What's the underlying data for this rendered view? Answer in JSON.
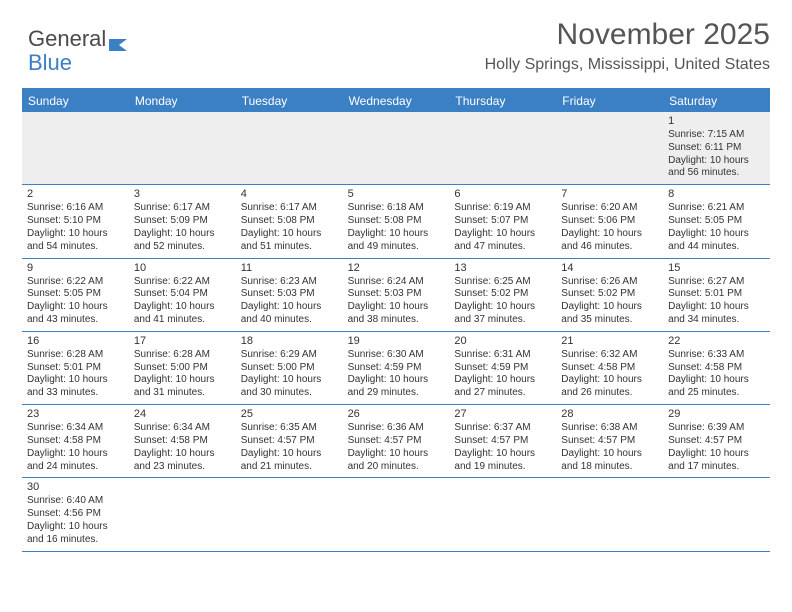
{
  "logo": {
    "part1": "General",
    "part2": "Blue"
  },
  "header": {
    "month_title": "November 2025",
    "location": "Holly Springs, Mississippi, United States"
  },
  "colors": {
    "header_bar": "#3b7fc4",
    "rule": "#3b7fc4",
    "first_week_bg": "#eeeeee",
    "text": "#333333",
    "title_text": "#555555"
  },
  "weekdays": [
    "Sunday",
    "Monday",
    "Tuesday",
    "Wednesday",
    "Thursday",
    "Friday",
    "Saturday"
  ],
  "weeks": [
    [
      null,
      null,
      null,
      null,
      null,
      null,
      {
        "n": "1",
        "sunrise": "Sunrise: 7:15 AM",
        "sunset": "Sunset: 6:11 PM",
        "d1": "Daylight: 10 hours",
        "d2": "and 56 minutes."
      }
    ],
    [
      {
        "n": "2",
        "sunrise": "Sunrise: 6:16 AM",
        "sunset": "Sunset: 5:10 PM",
        "d1": "Daylight: 10 hours",
        "d2": "and 54 minutes."
      },
      {
        "n": "3",
        "sunrise": "Sunrise: 6:17 AM",
        "sunset": "Sunset: 5:09 PM",
        "d1": "Daylight: 10 hours",
        "d2": "and 52 minutes."
      },
      {
        "n": "4",
        "sunrise": "Sunrise: 6:17 AM",
        "sunset": "Sunset: 5:08 PM",
        "d1": "Daylight: 10 hours",
        "d2": "and 51 minutes."
      },
      {
        "n": "5",
        "sunrise": "Sunrise: 6:18 AM",
        "sunset": "Sunset: 5:08 PM",
        "d1": "Daylight: 10 hours",
        "d2": "and 49 minutes."
      },
      {
        "n": "6",
        "sunrise": "Sunrise: 6:19 AM",
        "sunset": "Sunset: 5:07 PM",
        "d1": "Daylight: 10 hours",
        "d2": "and 47 minutes."
      },
      {
        "n": "7",
        "sunrise": "Sunrise: 6:20 AM",
        "sunset": "Sunset: 5:06 PM",
        "d1": "Daylight: 10 hours",
        "d2": "and 46 minutes."
      },
      {
        "n": "8",
        "sunrise": "Sunrise: 6:21 AM",
        "sunset": "Sunset: 5:05 PM",
        "d1": "Daylight: 10 hours",
        "d2": "and 44 minutes."
      }
    ],
    [
      {
        "n": "9",
        "sunrise": "Sunrise: 6:22 AM",
        "sunset": "Sunset: 5:05 PM",
        "d1": "Daylight: 10 hours",
        "d2": "and 43 minutes."
      },
      {
        "n": "10",
        "sunrise": "Sunrise: 6:22 AM",
        "sunset": "Sunset: 5:04 PM",
        "d1": "Daylight: 10 hours",
        "d2": "and 41 minutes."
      },
      {
        "n": "11",
        "sunrise": "Sunrise: 6:23 AM",
        "sunset": "Sunset: 5:03 PM",
        "d1": "Daylight: 10 hours",
        "d2": "and 40 minutes."
      },
      {
        "n": "12",
        "sunrise": "Sunrise: 6:24 AM",
        "sunset": "Sunset: 5:03 PM",
        "d1": "Daylight: 10 hours",
        "d2": "and 38 minutes."
      },
      {
        "n": "13",
        "sunrise": "Sunrise: 6:25 AM",
        "sunset": "Sunset: 5:02 PM",
        "d1": "Daylight: 10 hours",
        "d2": "and 37 minutes."
      },
      {
        "n": "14",
        "sunrise": "Sunrise: 6:26 AM",
        "sunset": "Sunset: 5:02 PM",
        "d1": "Daylight: 10 hours",
        "d2": "and 35 minutes."
      },
      {
        "n": "15",
        "sunrise": "Sunrise: 6:27 AM",
        "sunset": "Sunset: 5:01 PM",
        "d1": "Daylight: 10 hours",
        "d2": "and 34 minutes."
      }
    ],
    [
      {
        "n": "16",
        "sunrise": "Sunrise: 6:28 AM",
        "sunset": "Sunset: 5:01 PM",
        "d1": "Daylight: 10 hours",
        "d2": "and 33 minutes."
      },
      {
        "n": "17",
        "sunrise": "Sunrise: 6:28 AM",
        "sunset": "Sunset: 5:00 PM",
        "d1": "Daylight: 10 hours",
        "d2": "and 31 minutes."
      },
      {
        "n": "18",
        "sunrise": "Sunrise: 6:29 AM",
        "sunset": "Sunset: 5:00 PM",
        "d1": "Daylight: 10 hours",
        "d2": "and 30 minutes."
      },
      {
        "n": "19",
        "sunrise": "Sunrise: 6:30 AM",
        "sunset": "Sunset: 4:59 PM",
        "d1": "Daylight: 10 hours",
        "d2": "and 29 minutes."
      },
      {
        "n": "20",
        "sunrise": "Sunrise: 6:31 AM",
        "sunset": "Sunset: 4:59 PM",
        "d1": "Daylight: 10 hours",
        "d2": "and 27 minutes."
      },
      {
        "n": "21",
        "sunrise": "Sunrise: 6:32 AM",
        "sunset": "Sunset: 4:58 PM",
        "d1": "Daylight: 10 hours",
        "d2": "and 26 minutes."
      },
      {
        "n": "22",
        "sunrise": "Sunrise: 6:33 AM",
        "sunset": "Sunset: 4:58 PM",
        "d1": "Daylight: 10 hours",
        "d2": "and 25 minutes."
      }
    ],
    [
      {
        "n": "23",
        "sunrise": "Sunrise: 6:34 AM",
        "sunset": "Sunset: 4:58 PM",
        "d1": "Daylight: 10 hours",
        "d2": "and 24 minutes."
      },
      {
        "n": "24",
        "sunrise": "Sunrise: 6:34 AM",
        "sunset": "Sunset: 4:58 PM",
        "d1": "Daylight: 10 hours",
        "d2": "and 23 minutes."
      },
      {
        "n": "25",
        "sunrise": "Sunrise: 6:35 AM",
        "sunset": "Sunset: 4:57 PM",
        "d1": "Daylight: 10 hours",
        "d2": "and 21 minutes."
      },
      {
        "n": "26",
        "sunrise": "Sunrise: 6:36 AM",
        "sunset": "Sunset: 4:57 PM",
        "d1": "Daylight: 10 hours",
        "d2": "and 20 minutes."
      },
      {
        "n": "27",
        "sunrise": "Sunrise: 6:37 AM",
        "sunset": "Sunset: 4:57 PM",
        "d1": "Daylight: 10 hours",
        "d2": "and 19 minutes."
      },
      {
        "n": "28",
        "sunrise": "Sunrise: 6:38 AM",
        "sunset": "Sunset: 4:57 PM",
        "d1": "Daylight: 10 hours",
        "d2": "and 18 minutes."
      },
      {
        "n": "29",
        "sunrise": "Sunrise: 6:39 AM",
        "sunset": "Sunset: 4:57 PM",
        "d1": "Daylight: 10 hours",
        "d2": "and 17 minutes."
      }
    ],
    [
      {
        "n": "30",
        "sunrise": "Sunrise: 6:40 AM",
        "sunset": "Sunset: 4:56 PM",
        "d1": "Daylight: 10 hours",
        "d2": "and 16 minutes."
      },
      null,
      null,
      null,
      null,
      null,
      null
    ]
  ]
}
